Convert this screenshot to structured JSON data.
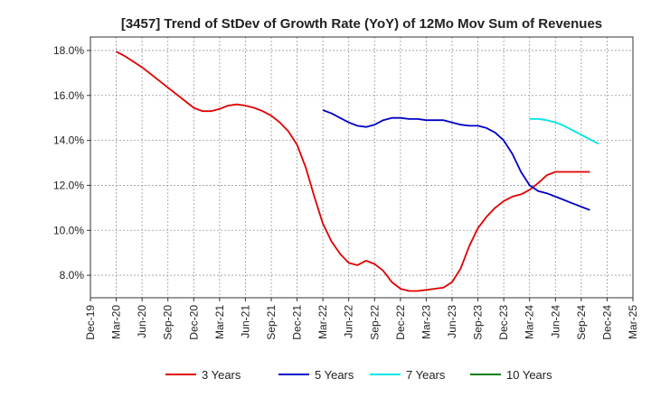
{
  "chart_data": {
    "type": "line",
    "title": "[3457]  Trend of StDev of Growth Rate (YoY) of 12Mo Mov Sum of Revenues",
    "xlabel": "",
    "ylabel": "",
    "ylim": [
      7.0,
      18.6
    ],
    "yticks": [
      8.0,
      10.0,
      12.0,
      14.0,
      16.0,
      18.0
    ],
    "ytick_labels": [
      "8.0%",
      "10.0%",
      "12.0%",
      "14.0%",
      "16.0%",
      "18.0%"
    ],
    "xticks": [
      "Dec-19",
      "Mar-20",
      "Jun-20",
      "Sep-20",
      "Dec-20",
      "Mar-21",
      "Jun-21",
      "Sep-21",
      "Dec-21",
      "Mar-22",
      "Jun-22",
      "Sep-22",
      "Dec-22",
      "Mar-23",
      "Jun-23",
      "Sep-23",
      "Dec-23",
      "Mar-24",
      "Jun-24",
      "Sep-24",
      "Dec-24",
      "Mar-25"
    ],
    "grid": true,
    "legend_position": "bottom",
    "series": [
      {
        "name": "3 Years",
        "color": "#e00000",
        "start_month": 3,
        "values": [
          17.95,
          17.75,
          17.5,
          17.25,
          16.95,
          16.65,
          16.35,
          16.05,
          15.75,
          15.45,
          15.3,
          15.3,
          15.4,
          15.55,
          15.6,
          15.55,
          15.45,
          15.3,
          15.1,
          14.8,
          14.4,
          13.8,
          12.8,
          11.5,
          10.3,
          9.5,
          8.95,
          8.55,
          8.45,
          8.65,
          8.5,
          8.2,
          7.7,
          7.4,
          7.3,
          7.3,
          7.35,
          7.4,
          7.45,
          7.7,
          8.3,
          9.3,
          10.1,
          10.6,
          11.0,
          11.3,
          11.5,
          11.6,
          11.8,
          12.1,
          12.45,
          12.6,
          12.6,
          12.6,
          12.6,
          12.6
        ]
      },
      {
        "name": "5 Years",
        "color": "#0000c8",
        "start_month": 27,
        "values": [
          15.35,
          15.2,
          15.0,
          14.8,
          14.65,
          14.6,
          14.7,
          14.9,
          15.0,
          15.0,
          14.95,
          14.95,
          14.9,
          14.9,
          14.9,
          14.8,
          14.7,
          14.65,
          14.65,
          14.55,
          14.35,
          14.0,
          13.4,
          12.6,
          12.0,
          11.75,
          11.65,
          11.5,
          11.35,
          11.2,
          11.05,
          10.9
        ]
      },
      {
        "name": "7 Years",
        "color": "#00e5e5",
        "start_month": 51,
        "values": [
          14.95,
          14.95,
          14.9,
          14.8,
          14.65,
          14.45,
          14.25,
          14.05,
          13.85
        ]
      },
      {
        "name": "10 Years",
        "color": "#008000",
        "start_month": 0,
        "values": []
      }
    ]
  }
}
